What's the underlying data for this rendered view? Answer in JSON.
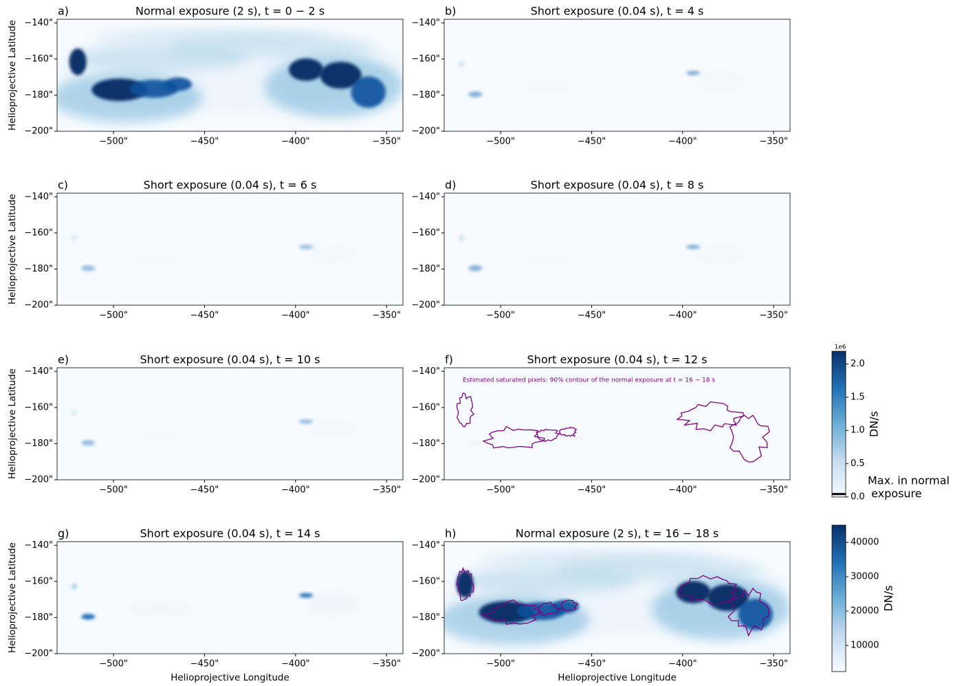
{
  "chart_data": [
    {
      "type": "image",
      "panel_label": "a)",
      "title": "Normal exposure (2 s), t = 0 − 2 s",
      "ylabel": "Helioprojective Latitude",
      "xlim": [
        -531,
        -341
      ],
      "ylim": [
        -200,
        -138
      ],
      "xticks": [
        {
          "value": -500,
          "label": "−500\""
        },
        {
          "value": -450,
          "label": "−450\""
        },
        {
          "value": -400,
          "label": "−400\""
        },
        {
          "value": -350,
          "label": "−350\""
        }
      ],
      "yticks": [
        {
          "value": -140,
          "label": "−140\""
        },
        {
          "value": -160,
          "label": "−160\""
        },
        {
          "value": -180,
          "label": "−180\""
        },
        {
          "value": -200,
          "label": "−200\""
        }
      ]
    },
    {
      "type": "image",
      "panel_label": "b)",
      "title": "Short exposure (0.04 s), t = 4 s",
      "xlim": [
        -531,
        -341
      ],
      "ylim": [
        -200,
        -138
      ],
      "xticks": [
        {
          "value": -500,
          "label": "−500\""
        },
        {
          "value": -450,
          "label": "−450\""
        },
        {
          "value": -400,
          "label": "−400\""
        },
        {
          "value": -350,
          "label": "−350\""
        }
      ],
      "yticks": [
        {
          "value": -140,
          "label": "−140\""
        },
        {
          "value": -160,
          "label": "−160\""
        },
        {
          "value": -180,
          "label": "−180\""
        },
        {
          "value": -200,
          "label": "−200\""
        }
      ]
    },
    {
      "type": "image",
      "panel_label": "c)",
      "title": "Short exposure (0.04 s), t = 6 s",
      "ylabel": "Helioprojective Latitude",
      "xlim": [
        -531,
        -341
      ],
      "ylim": [
        -200,
        -138
      ],
      "xticks": [
        {
          "value": -500,
          "label": "−500\""
        },
        {
          "value": -450,
          "label": "−450\""
        },
        {
          "value": -400,
          "label": "−400\""
        },
        {
          "value": -350,
          "label": "−350\""
        }
      ],
      "yticks": [
        {
          "value": -140,
          "label": "−140\""
        },
        {
          "value": -160,
          "label": "−160\""
        },
        {
          "value": -180,
          "label": "−180\""
        },
        {
          "value": -200,
          "label": "−200\""
        }
      ]
    },
    {
      "type": "image",
      "panel_label": "d)",
      "title": "Short exposure (0.04 s), t = 8 s",
      "xlim": [
        -531,
        -341
      ],
      "ylim": [
        -200,
        -138
      ],
      "xticks": [
        {
          "value": -500,
          "label": "−500\""
        },
        {
          "value": -450,
          "label": "−450\""
        },
        {
          "value": -400,
          "label": "−400\""
        },
        {
          "value": -350,
          "label": "−350\""
        }
      ],
      "yticks": [
        {
          "value": -140,
          "label": "−140\""
        },
        {
          "value": -160,
          "label": "−160\""
        },
        {
          "value": -180,
          "label": "−180\""
        },
        {
          "value": -200,
          "label": "−200\""
        }
      ]
    },
    {
      "type": "image",
      "panel_label": "e)",
      "title": "Short exposure (0.04 s), t = 10 s",
      "ylabel": "Helioprojective Latitude",
      "xlim": [
        -531,
        -341
      ],
      "ylim": [
        -200,
        -138
      ],
      "xticks": [
        {
          "value": -500,
          "label": "−500\""
        },
        {
          "value": -450,
          "label": "−450\""
        },
        {
          "value": -400,
          "label": "−400\""
        },
        {
          "value": -350,
          "label": "−350\""
        }
      ],
      "yticks": [
        {
          "value": -140,
          "label": "−140\""
        },
        {
          "value": -160,
          "label": "−160\""
        },
        {
          "value": -180,
          "label": "−180\""
        },
        {
          "value": -200,
          "label": "−200\""
        }
      ]
    },
    {
      "type": "image",
      "panel_label": "f)",
      "title": "Short exposure (0.04 s), t = 12 s",
      "annotation": "Estimated saturated pixels: 90% contour of the normal exposure at t = 16 − 18 s",
      "xlim": [
        -531,
        -341
      ],
      "ylim": [
        -200,
        -138
      ],
      "xticks": [
        {
          "value": -500,
          "label": "−500\""
        },
        {
          "value": -450,
          "label": "−450\""
        },
        {
          "value": -400,
          "label": "−400\""
        },
        {
          "value": -350,
          "label": "−350\""
        }
      ],
      "yticks": [
        {
          "value": -140,
          "label": "−140\""
        },
        {
          "value": -160,
          "label": "−160\""
        },
        {
          "value": -180,
          "label": "−180\""
        },
        {
          "value": -200,
          "label": "−200\""
        }
      ]
    },
    {
      "type": "image",
      "panel_label": "g)",
      "title": "Short exposure (0.04 s), t = 14 s",
      "ylabel": "Helioprojective Latitude",
      "xlabel": "Helioprojective Longitude",
      "xlim": [
        -531,
        -341
      ],
      "ylim": [
        -200,
        -138
      ],
      "xticks": [
        {
          "value": -500,
          "label": "−500\""
        },
        {
          "value": -450,
          "label": "−450\""
        },
        {
          "value": -400,
          "label": "−400\""
        },
        {
          "value": -350,
          "label": "−350\""
        }
      ],
      "yticks": [
        {
          "value": -140,
          "label": "−140\""
        },
        {
          "value": -160,
          "label": "−160\""
        },
        {
          "value": -180,
          "label": "−180\""
        },
        {
          "value": -200,
          "label": "−200\""
        }
      ]
    },
    {
      "type": "image",
      "panel_label": "h)",
      "title": "Normal exposure (2 s), t = 16 − 18 s",
      "xlabel": "Helioprojective Longitude",
      "xlim": [
        -531,
        -341
      ],
      "ylim": [
        -200,
        -138
      ],
      "xticks": [
        {
          "value": -500,
          "label": "−500\""
        },
        {
          "value": -450,
          "label": "−450\""
        },
        {
          "value": -400,
          "label": "−400\""
        },
        {
          "value": -350,
          "label": "−350\""
        }
      ],
      "yticks": [
        {
          "value": -140,
          "label": "−140\""
        },
        {
          "value": -160,
          "label": "−160\""
        },
        {
          "value": -180,
          "label": "−180\""
        },
        {
          "value": -200,
          "label": "−200\""
        }
      ]
    },
    {
      "type": "colorbar",
      "ylabel": "DN/s",
      "offset_label": "1e6",
      "ylim": [
        0,
        2.19
      ],
      "yticks": [
        {
          "value": 0,
          "label": "0.0"
        },
        {
          "value": 0.5,
          "label": "0.5"
        },
        {
          "value": 1,
          "label": "1.0"
        },
        {
          "value": 1.5,
          "label": "1.5"
        },
        {
          "value": 2,
          "label": "2.0"
        }
      ],
      "marker_value": 0.044,
      "marker_label": [
        "Max. in normal",
        " exposure"
      ],
      "colormap": [
        "#f7fbff",
        "#c6dbef",
        "#6baed6",
        "#2171b5",
        "#08306b"
      ]
    },
    {
      "type": "colorbar",
      "ylabel": "DN/s",
      "ylim": [
        2400,
        45000
      ],
      "yticks": [
        10000,
        20000,
        30000,
        40000
      ],
      "colormap": [
        "#f7fbff",
        "#c6dbef",
        "#6baed6",
        "#2171b5",
        "#08306b"
      ]
    }
  ]
}
